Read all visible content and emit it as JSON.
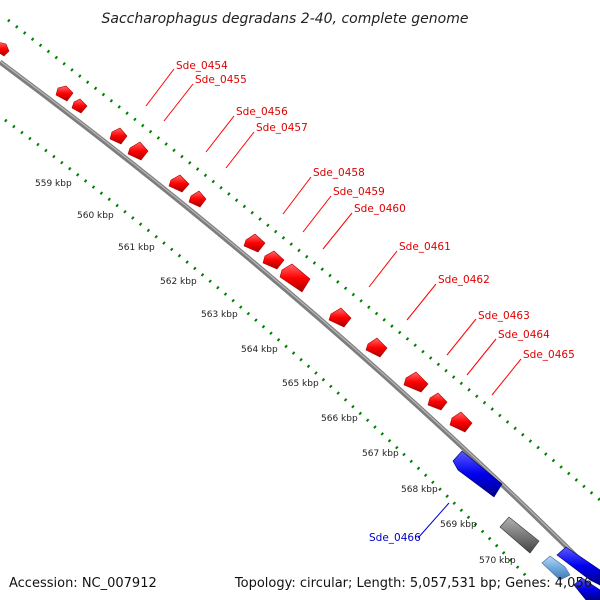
{
  "title": "Saccharophagus degradans 2-40, complete genome",
  "accession_text": "Accession: NC_007912",
  "summary_text": "Topology: circular; Length: 5,057,531 bp; Genes: 4,056",
  "colors": {
    "forward_gene": "#ff0000",
    "reverse_gene": "#0000ff",
    "pseudo_gene": "#888888",
    "rna_gene": "#6fa8dc",
    "tick_green": "#008000",
    "backbone": "#808080"
  },
  "ticks": [
    {
      "label": "559 kbp"
    },
    {
      "label": "560 kbp"
    },
    {
      "label": "561 kbp"
    },
    {
      "label": "562 kbp"
    },
    {
      "label": "563 kbp"
    },
    {
      "label": "564 kbp"
    },
    {
      "label": "565 kbp"
    },
    {
      "label": "566 kbp"
    },
    {
      "label": "567 kbp"
    },
    {
      "label": "568 kbp"
    },
    {
      "label": "569 kbp"
    },
    {
      "label": "570 kbp"
    }
  ],
  "gene_labels": [
    {
      "name": "Sde_0454",
      "strand": "forward"
    },
    {
      "name": "Sde_0455",
      "strand": "forward"
    },
    {
      "name": "Sde_0456",
      "strand": "forward"
    },
    {
      "name": "Sde_0457",
      "strand": "forward"
    },
    {
      "name": "Sde_0458",
      "strand": "forward"
    },
    {
      "name": "Sde_0459",
      "strand": "forward"
    },
    {
      "name": "Sde_0460",
      "strand": "forward"
    },
    {
      "name": "Sde_0461",
      "strand": "forward"
    },
    {
      "name": "Sde_0462",
      "strand": "forward"
    },
    {
      "name": "Sde_0463",
      "strand": "forward"
    },
    {
      "name": "Sde_0464",
      "strand": "forward"
    },
    {
      "name": "Sde_0465",
      "strand": "forward"
    },
    {
      "name": "Sde_0466",
      "strand": "reverse"
    }
  ]
}
